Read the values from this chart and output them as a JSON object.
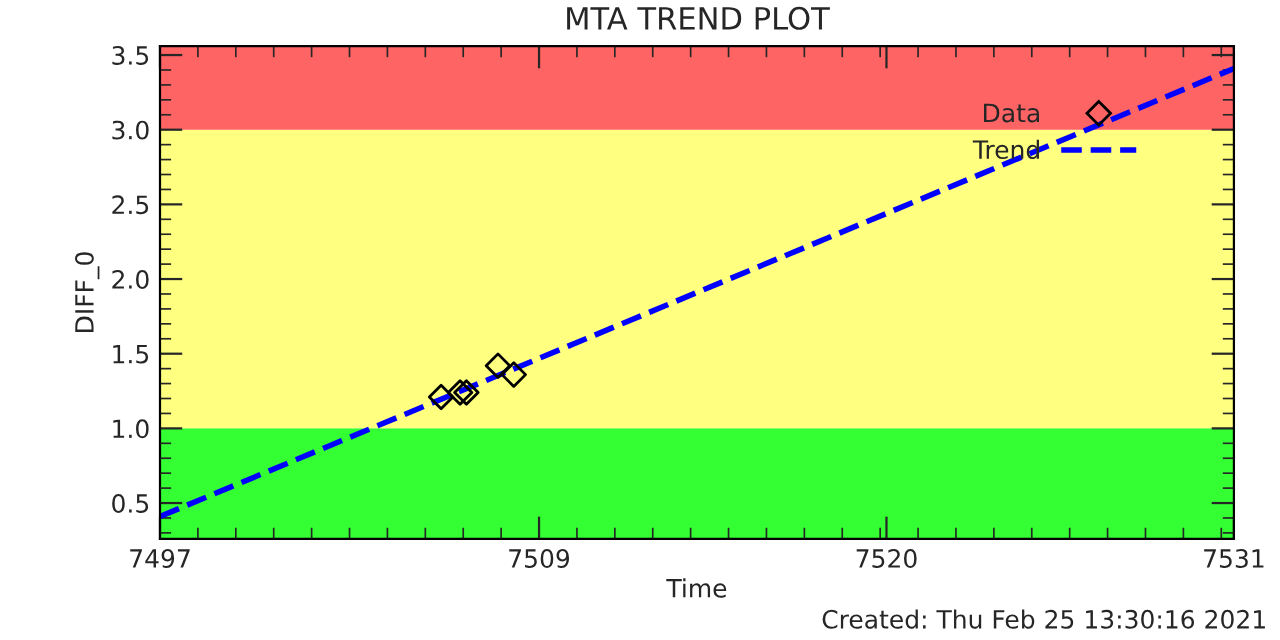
{
  "chart_data": {
    "type": "scatter",
    "title": "MTA TREND PLOT",
    "xlabel": "Time",
    "ylabel": "DIFF_0",
    "annotations": [
      "Created: Thu Feb 25 13:30:16 2021"
    ],
    "xlim": [
      7497,
      7531
    ],
    "xticks": [
      7497,
      7509,
      7520,
      7531
    ],
    "ylim": [
      0.26,
      3.56
    ],
    "yticks": [
      0.5,
      {
        "value": 1,
        "label": "1.0"
      },
      1.5,
      {
        "value": 2,
        "label": "2.0"
      },
      2.5,
      {
        "value": 3,
        "label": "3.0"
      },
      3.5
    ],
    "series": [
      {
        "name": "Data",
        "marker": "diamond",
        "color": "#000000",
        "x": [
          7505.9,
          7506.5,
          7506.7,
          7507.7,
          7508.2
        ],
        "values": [
          1.21,
          1.24,
          1.24,
          1.42,
          1.36
        ]
      },
      {
        "name": "Trend",
        "type": "line",
        "line_style": "dashed",
        "marker": "none",
        "color": "#0000ff",
        "x": [
          7497,
          7531
        ],
        "values": [
          0.41,
          3.41
        ]
      }
    ],
    "bands": [
      {
        "axis": "y",
        "from": 0.26,
        "to": 1.0,
        "color": "#33ff33"
      },
      {
        "axis": "y",
        "from": 1.0,
        "to": 3.0,
        "color": "#ffff80"
      },
      {
        "axis": "y",
        "from": 3.0,
        "to": 3.56,
        "color": "#ff6464"
      }
    ],
    "legend": "top right",
    "grid": false
  }
}
